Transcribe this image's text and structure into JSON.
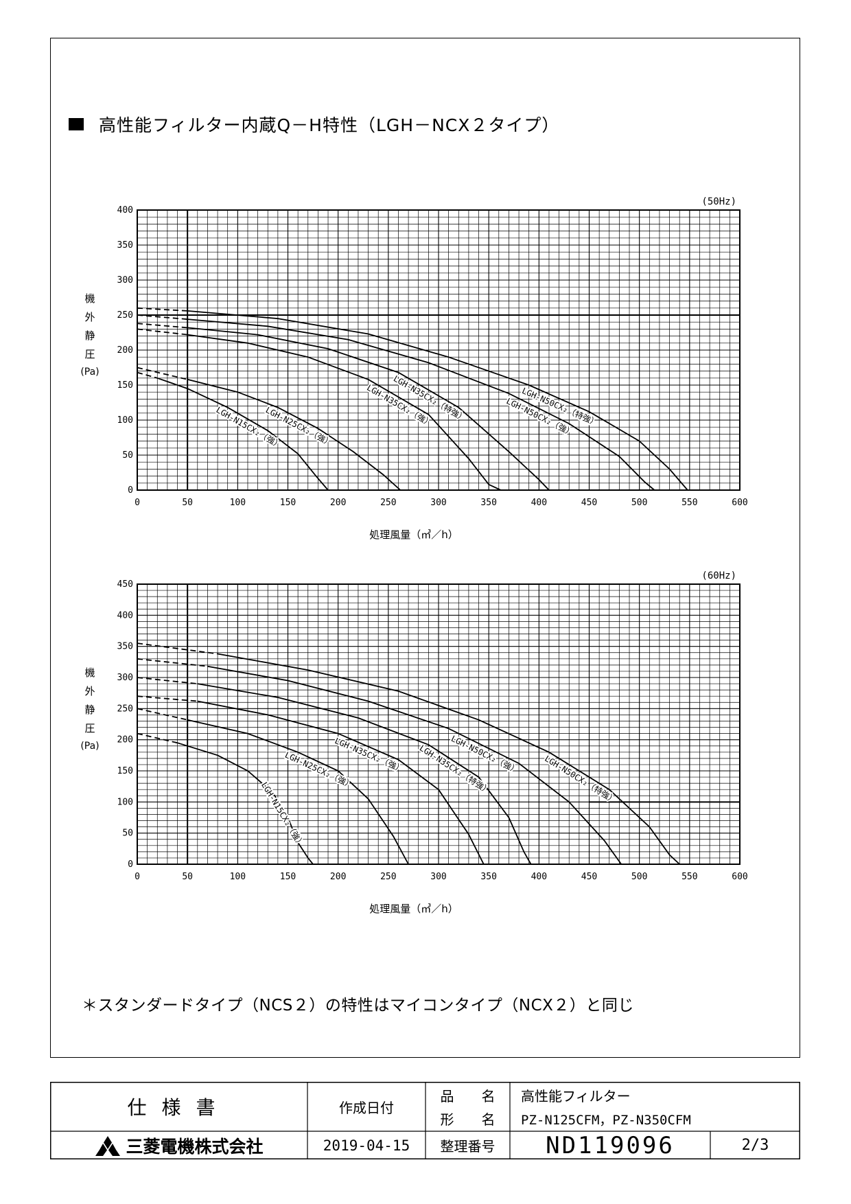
{
  "heading": "高性能フィルター内蔵Q－H特性（LGH－NCX２タイプ）",
  "note": "＊スタンダードタイプ（NCS２）の特性はマイコンタイプ（NCX２）と同じ",
  "chart_data": [
    {
      "type": "line",
      "freq_label": "(50Hz)",
      "ylabel_chars": [
        "機",
        "外",
        "静",
        "圧"
      ],
      "ylabel_unit": "(Pa)",
      "xlabel": "処理風量（㎥／h）",
      "xlim": [
        0,
        600
      ],
      "ylim": [
        0,
        400
      ],
      "x_ticks": [
        0,
        50,
        100,
        150,
        200,
        250,
        300,
        350,
        400,
        450,
        500,
        550,
        600
      ],
      "y_ticks": [
        0,
        50,
        100,
        150,
        200,
        250,
        300,
        350,
        400
      ],
      "grid": true,
      "series": [
        {
          "name": "LGH-N15CX₂（強）",
          "dashed": [
            [
              0,
              168
            ],
            [
              20,
              160
            ]
          ],
          "solid": [
            [
              20,
              160
            ],
            [
              50,
              145
            ],
            [
              90,
              118
            ],
            [
              130,
              85
            ],
            [
              160,
              52
            ],
            [
              178,
              20
            ],
            [
              190,
              0
            ]
          ]
        },
        {
          "name": "LGH-N25CX₂（強）",
          "dashed": [
            [
              0,
              175
            ],
            [
              50,
              158
            ]
          ],
          "solid": [
            [
              50,
              158
            ],
            [
              100,
              140
            ],
            [
              140,
              118
            ],
            [
              180,
              88
            ],
            [
              215,
              55
            ],
            [
              245,
              22
            ],
            [
              262,
              0
            ]
          ]
        },
        {
          "name": "LGH-N35CX₂（強）",
          "dashed": [
            [
              0,
              230
            ],
            [
              50,
              222
            ]
          ],
          "solid": [
            [
              50,
              222
            ],
            [
              110,
              210
            ],
            [
              170,
              190
            ],
            [
              230,
              158
            ],
            [
              290,
              108
            ],
            [
              330,
              45
            ],
            [
              350,
              8
            ],
            [
              362,
              0
            ]
          ]
        },
        {
          "name": "LGH-N35CX₂（特強）",
          "dashed": [
            [
              0,
              238
            ],
            [
              50,
              232
            ]
          ],
          "solid": [
            [
              50,
              232
            ],
            [
              120,
              222
            ],
            [
              190,
              202
            ],
            [
              260,
              168
            ],
            [
              320,
              118
            ],
            [
              370,
              55
            ],
            [
              400,
              15
            ],
            [
              410,
              0
            ]
          ]
        },
        {
          "name": "LGH-N50CX₂（強）",
          "dashed": [
            [
              0,
              250
            ],
            [
              50,
              244
            ]
          ],
          "solid": [
            [
              50,
              244
            ],
            [
              130,
              234
            ],
            [
              210,
              215
            ],
            [
              290,
              182
            ],
            [
              370,
              138
            ],
            [
              430,
              95
            ],
            [
              480,
              48
            ],
            [
              505,
              12
            ],
            [
              515,
              0
            ]
          ]
        },
        {
          "name": "LGH-N50CX₂（特強）",
          "dashed": [
            [
              0,
              260
            ],
            [
              50,
              256
            ]
          ],
          "solid": [
            [
              50,
              256
            ],
            [
              140,
              245
            ],
            [
              230,
              223
            ],
            [
              310,
              190
            ],
            [
              390,
              150
            ],
            [
              450,
              112
            ],
            [
              500,
              70
            ],
            [
              530,
              30
            ],
            [
              548,
              0
            ]
          ]
        }
      ]
    },
    {
      "type": "line",
      "freq_label": "(60Hz)",
      "ylabel_chars": [
        "機",
        "外",
        "静",
        "圧"
      ],
      "ylabel_unit": "(Pa)",
      "xlabel": "処理風量（㎥／h）",
      "xlim": [
        0,
        600
      ],
      "ylim": [
        0,
        450
      ],
      "x_ticks": [
        0,
        50,
        100,
        150,
        200,
        250,
        300,
        350,
        400,
        450,
        500,
        550,
        600
      ],
      "y_ticks": [
        0,
        50,
        100,
        150,
        200,
        250,
        300,
        350,
        400,
        450
      ],
      "grid": true,
      "series": [
        {
          "name": "LGH-N15CX₂（強）",
          "dashed": [
            [
              0,
              210
            ],
            [
              40,
              195
            ]
          ],
          "solid": [
            [
              40,
              195
            ],
            [
              80,
              175
            ],
            [
              110,
              150
            ],
            [
              135,
              115
            ],
            [
              150,
              75
            ],
            [
              160,
              35
            ],
            [
              170,
              10
            ],
            [
              175,
              0
            ]
          ]
        },
        {
          "name": "LGH-N25CX₂（強）",
          "dashed": [
            [
              0,
              250
            ],
            [
              50,
              232
            ]
          ],
          "solid": [
            [
              50,
              232
            ],
            [
              110,
              210
            ],
            [
              160,
              180
            ],
            [
              200,
              150
            ],
            [
              230,
              105
            ],
            [
              255,
              45
            ],
            [
              270,
              0
            ]
          ]
        },
        {
          "name": "LGH-N35CX₂（強）",
          "dashed": [
            [
              0,
              270
            ],
            [
              60,
              262
            ]
          ],
          "solid": [
            [
              60,
              262
            ],
            [
              130,
              240
            ],
            [
              200,
              210
            ],
            [
              260,
              168
            ],
            [
              300,
              120
            ],
            [
              330,
              48
            ],
            [
              345,
              0
            ]
          ]
        },
        {
          "name": "LGH-N35CX₂（特強）",
          "dashed": [
            [
              0,
              300
            ],
            [
              60,
              290
            ]
          ],
          "solid": [
            [
              60,
              290
            ],
            [
              140,
              268
            ],
            [
              220,
              235
            ],
            [
              290,
              192
            ],
            [
              340,
              140
            ],
            [
              370,
              75
            ],
            [
              385,
              20
            ],
            [
              392,
              0
            ]
          ]
        },
        {
          "name": "LGH-N50CX₂（強）",
          "dashed": [
            [
              0,
              330
            ],
            [
              70,
              318
            ]
          ],
          "solid": [
            [
              70,
              318
            ],
            [
              150,
              295
            ],
            [
              230,
              262
            ],
            [
              310,
              218
            ],
            [
              380,
              162
            ],
            [
              430,
              100
            ],
            [
              465,
              38
            ],
            [
              482,
              0
            ]
          ]
        },
        {
          "name": "LGH-N50CX₂（特強）",
          "dashed": [
            [
              0,
              355
            ],
            [
              80,
              338
            ]
          ],
          "solid": [
            [
              80,
              338
            ],
            [
              170,
              312
            ],
            [
              260,
              278
            ],
            [
              340,
              232
            ],
            [
              410,
              180
            ],
            [
              470,
              120
            ],
            [
              510,
              60
            ],
            [
              530,
              15
            ],
            [
              540,
              0
            ]
          ]
        }
      ]
    }
  ],
  "title_block": {
    "doc_type": "仕様書",
    "company": "三菱電機株式会社",
    "date_label": "作成日付",
    "date": "2019-04-15",
    "hinmei_label": "品　　名",
    "katamei_label": "形　　名",
    "seiri_label": "整理番号",
    "product_name": "高性能フィルター",
    "model": "PZ-N125CFM，PZ-N350CFM",
    "doc_number": "ND119096",
    "page": "2/3"
  },
  "colors": {
    "ink": "#000000",
    "paper": "#ffffff"
  }
}
